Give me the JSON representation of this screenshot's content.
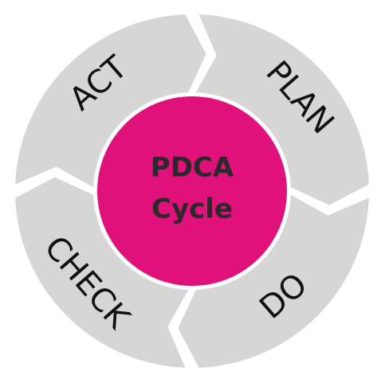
{
  "center": {
    "line1": "PDCA",
    "line2": "Cycle",
    "color": "#e0117a"
  },
  "segments": [
    {
      "label": "PLAN"
    },
    {
      "label": "DO"
    },
    {
      "label": "CHECK"
    },
    {
      "label": "ACT"
    }
  ],
  "colors": {
    "segment": "#d6d6d6",
    "text": "#111111",
    "center_text": "#2a2a2a"
  }
}
